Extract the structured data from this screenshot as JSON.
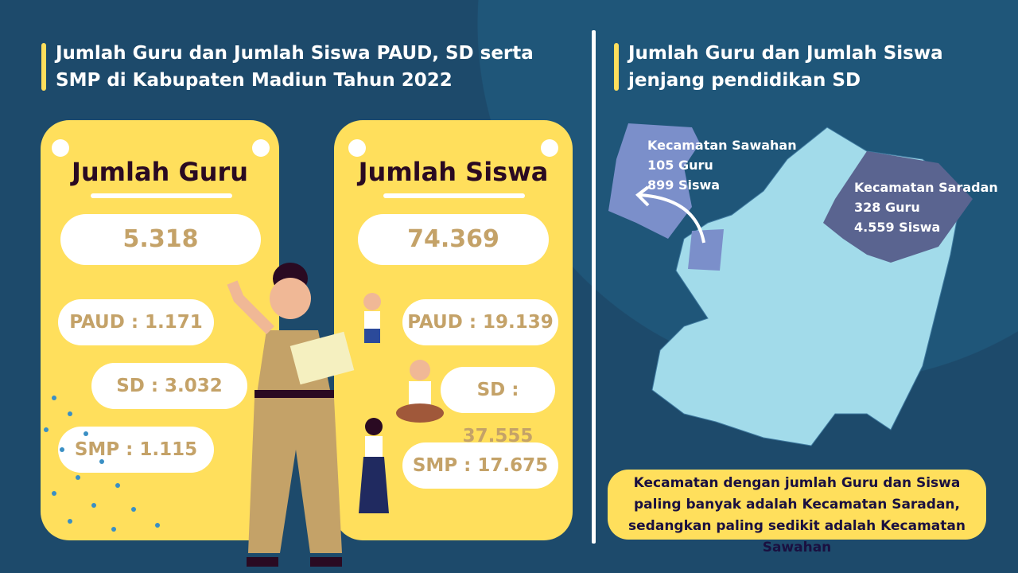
{
  "left": {
    "title": "Jumlah Guru dan Jumlah Siswa PAUD, SD serta SMP di Kabupaten Madiun Tahun 2022",
    "guru": {
      "heading": "Jumlah Guru",
      "total": "5.318",
      "paud": "PAUD : 1.171",
      "sd": "SD : 3.032",
      "smp": "SMP : 1.115"
    },
    "siswa": {
      "heading": "Jumlah Siswa",
      "total": "74.369",
      "paud": "PAUD : 19.139",
      "sd": "SD : 37.555",
      "smp": "SMP : 17.675"
    }
  },
  "right": {
    "title": "Jumlah Guru dan Jumlah Siswa jenjang pendidikan SD",
    "sawahan": {
      "name": "Kecamatan Sawahan",
      "guru": "105 Guru",
      "siswa": "899 Siswa"
    },
    "saradan": {
      "name": "Kecamatan Saradan",
      "guru": "328 Guru",
      "siswa": "4.559 Siswa"
    },
    "note": "Kecamatan dengan jumlah Guru dan Siswa paling banyak adalah Kecamatan Saradan, sedangkan paling sedikit adalah Kecamatan Sawahan"
  },
  "colors": {
    "background": "#1d4a6b",
    "accent": "#ffdf5c",
    "number": "#c4a268",
    "map": "#a2dbea",
    "sawahan": "#7b8fca",
    "saradan": "#5a6490"
  }
}
